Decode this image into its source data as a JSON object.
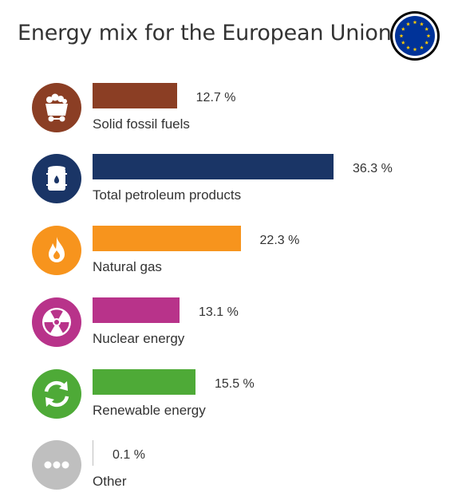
{
  "title": "Energy mix for the European Union",
  "icons": {
    "flag": "eu-flag-icon",
    "solid": "coal-cart-icon",
    "petroleum": "oil-barrel-icon",
    "gas": "flame-icon",
    "nuclear": "radiation-icon",
    "renewable": "recycle-arrows-icon",
    "other": "ellipsis-icon"
  },
  "colors": {
    "eu_blue": "#003399",
    "eu_star": "#ffcc00",
    "solid": "#8b3e24",
    "petroleum": "#1a3566",
    "gas": "#f7941d",
    "nuclear": "#b8338a",
    "renewable": "#4eaa37",
    "other": "#bfbfbf"
  },
  "chart_data": {
    "type": "bar",
    "orientation": "horizontal",
    "title": "Energy mix for the European Union",
    "unit": "%",
    "categories": [
      "Solid fossil fuels",
      "Total petroleum products",
      "Natural gas",
      "Nuclear energy",
      "Renewable energy",
      "Other"
    ],
    "values": [
      12.7,
      36.3,
      22.3,
      13.1,
      15.5,
      0.1
    ],
    "value_labels": [
      "12.7 %",
      "36.3 %",
      "22.3 %",
      "13.1 %",
      "15.5 %",
      "0.1 %"
    ],
    "colors": [
      "#8b3e24",
      "#1a3566",
      "#f7941d",
      "#b8338a",
      "#4eaa37",
      "#bfbfbf"
    ],
    "xlim": [
      0,
      36.3
    ],
    "grid": false,
    "legend": "none"
  }
}
